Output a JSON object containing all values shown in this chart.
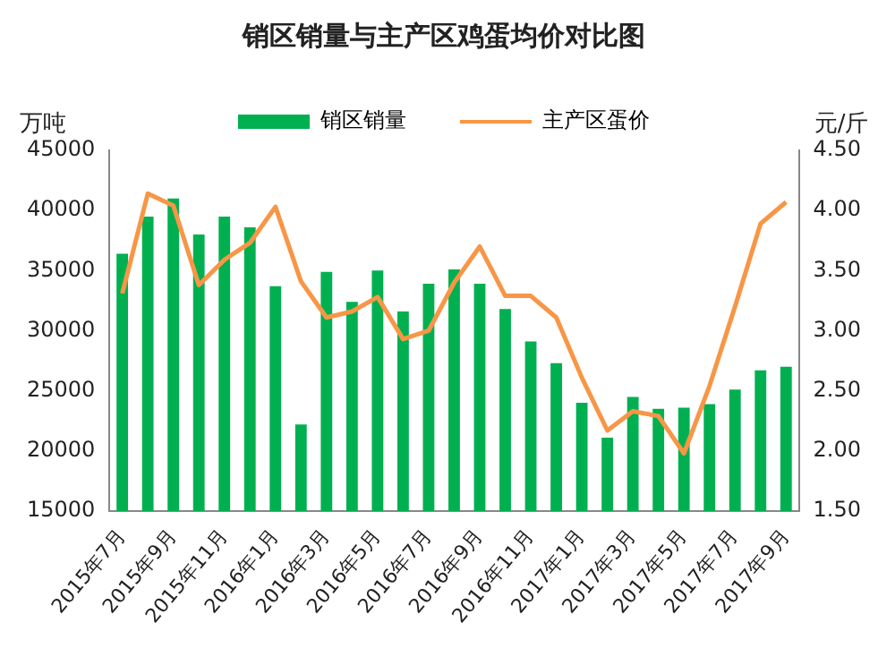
{
  "chart_data": {
    "type": "bar",
    "title": "销区销量与主产区鸡蛋均价对比图",
    "ylabel": "万吨",
    "y2label": "元/斤",
    "categories": [
      "2015年7月",
      null,
      "2015年9月",
      null,
      "2015年11月",
      null,
      "2016年1月",
      null,
      "2016年3月",
      null,
      "2016年5月",
      null,
      "2016年7月",
      null,
      "2016年9月",
      null,
      "2016年11月",
      null,
      "2017年1月",
      null,
      "2017年3月",
      null,
      "2017年5月",
      null,
      "2017年7月",
      null,
      "2017年9月"
    ],
    "series": [
      {
        "name": "销区销量",
        "color": "#00b050",
        "values": [
          36400,
          39500,
          41000,
          38000,
          39500,
          38600,
          33700,
          22200,
          34900,
          32400,
          35000,
          31600,
          33900,
          35100,
          33900,
          31800,
          29100,
          27300,
          24000,
          21100,
          24500,
          23500,
          23600,
          23900,
          25100,
          26700,
          27000
        ]
      },
      {
        "name": "主产区蛋价",
        "type": "line",
        "axis": "y2",
        "color": "#f79646",
        "values": [
          3.31,
          4.14,
          4.04,
          3.38,
          3.59,
          3.73,
          4.03,
          3.41,
          3.11,
          3.16,
          3.28,
          2.93,
          3.0,
          3.4,
          3.7,
          3.29,
          3.29,
          3.11,
          2.61,
          2.17,
          2.33,
          2.29,
          1.98,
          2.54,
          3.2,
          3.89,
          4.07
        ]
      }
    ],
    "ylim": [
      15000,
      45000
    ],
    "yticks": [
      15000,
      20000,
      25000,
      30000,
      35000,
      40000,
      45000
    ],
    "y2lim": [
      1.5,
      4.5
    ],
    "y2ticks": [
      {
        "value": 1.5,
        "label": "1.50"
      },
      {
        "value": 2,
        "label": "2.00"
      },
      {
        "value": 2.5,
        "label": "2.50"
      },
      {
        "value": 3,
        "label": "3.00"
      },
      {
        "value": 3.5,
        "label": "3.50"
      },
      {
        "value": 4,
        "label": "4.00"
      },
      {
        "value": 4.5,
        "label": "4.50"
      }
    ],
    "grid": false,
    "legend": "top",
    "marker": "none"
  }
}
